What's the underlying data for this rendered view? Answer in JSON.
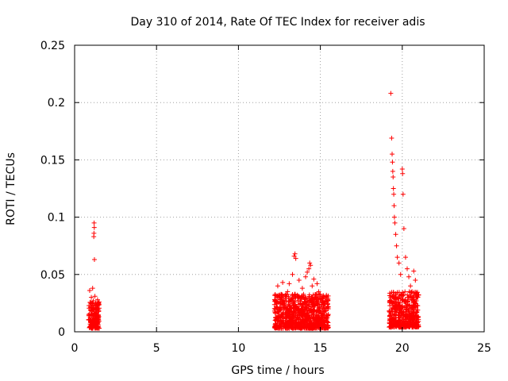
{
  "chart_data": {
    "type": "scatter",
    "title": "Day 310 of 2014, Rate Of TEC Index for receiver adis",
    "xlabel": "GPS time / hours",
    "ylabel": "ROTI / TECUs",
    "xlim": [
      0,
      25
    ],
    "ylim": [
      0,
      0.25
    ],
    "xticks": [
      0,
      5,
      10,
      15,
      20,
      25
    ],
    "yticks": [
      0,
      0.05,
      0.1,
      0.15,
      0.2,
      0.25
    ],
    "xtick_labels": [
      "0",
      "5",
      "10",
      "15",
      "20",
      "25"
    ],
    "ytick_labels": [
      "0",
      "0.05",
      "0.1",
      "0.15",
      "0.2",
      "0.25"
    ],
    "grid": true,
    "marker": "+",
    "series": [
      {
        "name": "ROTI",
        "color": "#ff0000",
        "points": [
          [
            0.92,
            0.036
          ],
          [
            0.95,
            0.012
          ],
          [
            0.98,
            0.022
          ],
          [
            1.0,
            0.008
          ],
          [
            1.02,
            0.03
          ],
          [
            1.04,
            0.015
          ],
          [
            1.06,
            0.025
          ],
          [
            1.08,
            0.018
          ],
          [
            1.1,
            0.038
          ],
          [
            1.12,
            0.01
          ],
          [
            1.14,
            0.027
          ],
          [
            1.16,
            0.02
          ],
          [
            1.17,
            0.083
          ],
          [
            1.18,
            0.086
          ],
          [
            1.19,
            0.095
          ],
          [
            1.2,
            0.091
          ],
          [
            1.21,
            0.063
          ],
          [
            1.22,
            0.012
          ],
          [
            1.24,
            0.031
          ],
          [
            1.26,
            0.019
          ],
          [
            1.28,
            0.016
          ],
          [
            1.3,
            0.024
          ],
          [
            1.32,
            0.009
          ],
          [
            1.34,
            0.014
          ],
          [
            1.36,
            0.021
          ],
          [
            1.38,
            0.013
          ],
          [
            1.4,
            0.028
          ],
          [
            1.42,
            0.011
          ],
          [
            12.3,
            0.022
          ],
          [
            12.4,
            0.04
          ],
          [
            12.5,
            0.018
          ],
          [
            12.6,
            0.03
          ],
          [
            12.7,
            0.043
          ],
          [
            12.8,
            0.026
          ],
          [
            12.9,
            0.015
          ],
          [
            13.0,
            0.035
          ],
          [
            13.1,
            0.042
          ],
          [
            13.2,
            0.028
          ],
          [
            13.3,
            0.05
          ],
          [
            13.4,
            0.066
          ],
          [
            13.45,
            0.068
          ],
          [
            13.5,
            0.064
          ],
          [
            13.6,
            0.032
          ],
          [
            13.7,
            0.045
          ],
          [
            13.8,
            0.025
          ],
          [
            13.9,
            0.038
          ],
          [
            14.0,
            0.03
          ],
          [
            14.1,
            0.048
          ],
          [
            14.2,
            0.052
          ],
          [
            14.3,
            0.055
          ],
          [
            14.35,
            0.06
          ],
          [
            14.4,
            0.058
          ],
          [
            14.5,
            0.04
          ],
          [
            14.6,
            0.046
          ],
          [
            14.7,
            0.03
          ],
          [
            14.8,
            0.042
          ],
          [
            14.9,
            0.035
          ],
          [
            15.0,
            0.028
          ],
          [
            15.1,
            0.022
          ],
          [
            15.2,
            0.03
          ],
          [
            15.3,
            0.018
          ],
          [
            15.4,
            0.026
          ],
          [
            19.3,
            0.208
          ],
          [
            19.35,
            0.169
          ],
          [
            19.38,
            0.155
          ],
          [
            19.4,
            0.148
          ],
          [
            19.42,
            0.14
          ],
          [
            19.44,
            0.135
          ],
          [
            19.46,
            0.125
          ],
          [
            19.48,
            0.12
          ],
          [
            19.5,
            0.11
          ],
          [
            19.52,
            0.1
          ],
          [
            19.55,
            0.095
          ],
          [
            19.6,
            0.085
          ],
          [
            19.65,
            0.075
          ],
          [
            19.7,
            0.065
          ],
          [
            19.8,
            0.06
          ],
          [
            19.9,
            0.05
          ],
          [
            20.0,
            0.142
          ],
          [
            20.02,
            0.138
          ],
          [
            20.05,
            0.12
          ],
          [
            20.1,
            0.09
          ],
          [
            20.2,
            0.065
          ],
          [
            20.3,
            0.055
          ],
          [
            20.4,
            0.048
          ],
          [
            20.5,
            0.04
          ],
          [
            20.6,
            0.035
          ],
          [
            20.7,
            0.053
          ],
          [
            20.8,
            0.045
          ],
          [
            20.9,
            0.03
          ]
        ]
      }
    ],
    "clusters": [
      {
        "x_range": [
          0.85,
          1.5
        ],
        "y_range": [
          0.003,
          0.026
        ]
      },
      {
        "x_range": [
          12.2,
          15.5
        ],
        "y_range": [
          0.003,
          0.033
        ]
      },
      {
        "x_range": [
          19.2,
          21.0
        ],
        "y_range": [
          0.004,
          0.035
        ]
      }
    ]
  }
}
